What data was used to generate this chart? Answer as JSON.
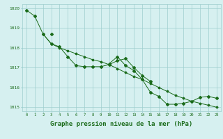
{
  "title": "Graphe pression niveau de la mer (hPa)",
  "x": [
    0,
    1,
    2,
    3,
    4,
    5,
    6,
    7,
    8,
    9,
    10,
    11,
    12,
    13,
    14,
    15,
    16,
    17,
    18,
    19,
    20,
    21,
    22,
    23
  ],
  "line1": [
    1019.9,
    null,
    1018.7,
    1018.2,
    1018.05,
    1017.55,
    1017.1,
    1017.05,
    1017.05,
    1017.05,
    1017.15,
    1017.35,
    1017.45,
    1017.0,
    1016.6,
    1016.3,
    null,
    null,
    null,
    null,
    null,
    null,
    null,
    null
  ],
  "line2": [
    null,
    1019.6,
    null,
    1018.7,
    null,
    null,
    null,
    null,
    null,
    null,
    1017.2,
    1017.55,
    1017.1,
    1016.85,
    1016.4,
    1015.75,
    1015.55,
    1015.15,
    1015.15,
    1015.2,
    1015.3,
    1015.5,
    1015.55,
    1015.45
  ],
  "line3": [
    1019.9,
    1019.6,
    1018.7,
    1018.2,
    1018.0,
    1017.85,
    1017.7,
    1017.55,
    1017.4,
    1017.3,
    1017.15,
    1016.95,
    1016.75,
    1016.55,
    1016.4,
    1016.2,
    1016.0,
    1015.8,
    1015.6,
    1015.45,
    1015.3,
    1015.2,
    1015.1,
    1015.0
  ],
  "ylim": [
    1014.8,
    1020.2
  ],
  "yticks": [
    1015,
    1016,
    1017,
    1018,
    1019,
    1020
  ],
  "line_color": "#1a6b1a",
  "bg_color": "#d6f0f0",
  "grid_color": "#9ecece",
  "xlabel_color": "#1a6b1a",
  "title_fontsize": 6.5
}
